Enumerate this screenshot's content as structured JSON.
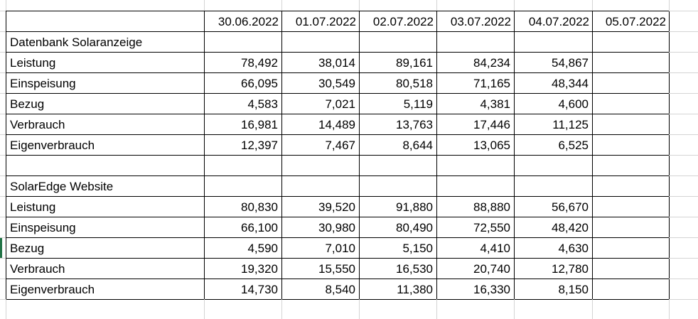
{
  "sheet": {
    "column_headers": [
      "",
      "30.06.2022",
      "01.07.2022",
      "02.07.2022",
      "03.07.2022",
      "04.07.2022",
      "05.07.2022"
    ],
    "rows": [
      {
        "type": "section",
        "label": "Datenbank Solaranzeige",
        "values": [
          "",
          "",
          "",
          "",
          "",
          ""
        ]
      },
      {
        "type": "data",
        "label": "Leistung",
        "values": [
          "78,492",
          "38,014",
          "89,161",
          "84,234",
          "54,867",
          ""
        ]
      },
      {
        "type": "data",
        "label": "Einspeisung",
        "values": [
          "66,095",
          "30,549",
          "80,518",
          "71,165",
          "48,344",
          ""
        ]
      },
      {
        "type": "data",
        "label": "Bezug",
        "values": [
          "4,583",
          "7,021",
          "5,119",
          "4,381",
          "4,600",
          ""
        ]
      },
      {
        "type": "data",
        "label": "Verbrauch",
        "values": [
          "16,981",
          "14,489",
          "13,763",
          "17,446",
          "11,125",
          ""
        ]
      },
      {
        "type": "data",
        "label": "Eigenverbrauch",
        "values": [
          "12,397",
          "7,467",
          "8,644",
          "13,065",
          "6,525",
          ""
        ]
      },
      {
        "type": "empty",
        "label": "",
        "values": [
          "",
          "",
          "",
          "",
          "",
          ""
        ]
      },
      {
        "type": "section",
        "label": "SolarEdge Website",
        "values": [
          "",
          "",
          "",
          "",
          "",
          ""
        ]
      },
      {
        "type": "data",
        "label": "Leistung",
        "values": [
          "80,830",
          "39,520",
          "91,880",
          "88,880",
          "56,670",
          ""
        ]
      },
      {
        "type": "data",
        "label": "Einspeisung",
        "values": [
          "66,100",
          "30,980",
          "80,490",
          "72,550",
          "48,420",
          ""
        ]
      },
      {
        "type": "data",
        "label": "Bezug",
        "values": [
          "4,590",
          "7,010",
          "5,150",
          "4,410",
          "4,630",
          ""
        ]
      },
      {
        "type": "data",
        "label": "Verbrauch",
        "values": [
          "19,320",
          "15,550",
          "16,530",
          "20,740",
          "12,780",
          ""
        ]
      },
      {
        "type": "data",
        "label": "Eigenverbrauch",
        "values": [
          "14,730",
          "8,540",
          "11,380",
          "16,330",
          "8,150",
          ""
        ]
      }
    ],
    "selection": {
      "row_index": 10,
      "row_label": "Bezug",
      "edge": "left",
      "color": "#217346"
    },
    "colors": {
      "cell_border": "#000000",
      "faint_gridline": "#d4d4d4",
      "background": "#ffffff",
      "text": "#000000",
      "selection_green": "#217346"
    }
  }
}
